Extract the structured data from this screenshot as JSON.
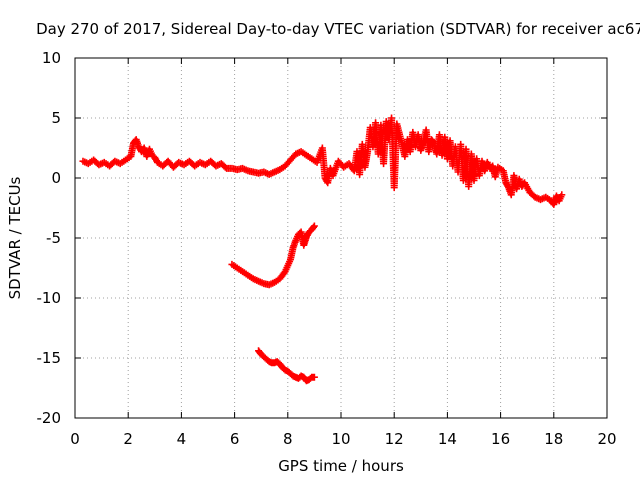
{
  "chart_data": {
    "type": "scatter",
    "title": "Day 270 of 2017, Sidereal Day-to-day VTEC variation (SDTVAR) for receiver ac67",
    "xlabel": "GPS time / hours",
    "ylabel": "SDTVAR / TECUs",
    "xlim": [
      0,
      20
    ],
    "ylim": [
      -20,
      10
    ],
    "xticks": [
      "0",
      "2",
      "4",
      "6",
      "8",
      "10",
      "12",
      "14",
      "16",
      "18",
      "20"
    ],
    "yticks": [
      "10",
      "5",
      "0",
      "-5",
      "-10",
      "-15",
      "-20"
    ],
    "grid": true,
    "marker": "+",
    "color": "#ff0000",
    "series": [
      {
        "name": "main-trace",
        "points": [
          [
            0.3,
            1.4
          ],
          [
            0.5,
            1.2
          ],
          [
            0.7,
            1.5
          ],
          [
            0.9,
            1.1
          ],
          [
            1.1,
            1.3
          ],
          [
            1.3,
            1.0
          ],
          [
            1.5,
            1.4
          ],
          [
            1.7,
            1.2
          ],
          [
            1.9,
            1.5
          ],
          [
            2.1,
            1.8
          ],
          [
            2.2,
            2.9
          ],
          [
            2.3,
            3.2
          ],
          [
            2.4,
            2.6
          ],
          [
            2.5,
            2.2
          ],
          [
            2.6,
            2.5
          ],
          [
            2.7,
            1.8
          ],
          [
            2.8,
            2.4
          ],
          [
            2.9,
            1.9
          ],
          [
            3.0,
            1.7
          ],
          [
            3.1,
            1.3
          ],
          [
            3.3,
            1.0
          ],
          [
            3.5,
            1.4
          ],
          [
            3.7,
            0.9
          ],
          [
            3.9,
            1.3
          ],
          [
            4.1,
            1.1
          ],
          [
            4.3,
            1.4
          ],
          [
            4.5,
            1.0
          ],
          [
            4.7,
            1.3
          ],
          [
            4.9,
            1.1
          ],
          [
            5.1,
            1.4
          ],
          [
            5.3,
            1.0
          ],
          [
            5.5,
            1.2
          ],
          [
            5.7,
            0.8
          ],
          [
            5.9,
            0.8
          ],
          [
            6.1,
            0.7
          ],
          [
            6.3,
            0.8
          ],
          [
            6.5,
            0.6
          ],
          [
            6.7,
            0.5
          ],
          [
            6.9,
            0.4
          ],
          [
            7.1,
            0.5
          ],
          [
            7.3,
            0.3
          ],
          [
            7.5,
            0.5
          ],
          [
            7.7,
            0.7
          ],
          [
            7.9,
            1.0
          ],
          [
            8.1,
            1.5
          ],
          [
            8.3,
            2.0
          ],
          [
            8.5,
            2.2
          ],
          [
            8.7,
            1.9
          ],
          [
            8.9,
            1.6
          ],
          [
            9.1,
            1.3
          ],
          [
            9.3,
            2.5
          ],
          [
            9.4,
            0.0
          ],
          [
            9.5,
            -0.4
          ],
          [
            9.6,
            0.8
          ],
          [
            9.7,
            0.2
          ],
          [
            9.9,
            1.4
          ],
          [
            10.1,
            0.9
          ],
          [
            10.3,
            1.2
          ],
          [
            10.5,
            0.6
          ],
          [
            10.6,
            2.2
          ],
          [
            10.7,
            0.3
          ],
          [
            10.8,
            2.8
          ],
          [
            10.9,
            0.9
          ],
          [
            11.0,
            2.2
          ],
          [
            11.1,
            4.2
          ],
          [
            11.2,
            2.6
          ],
          [
            11.3,
            4.6
          ],
          [
            11.4,
            2.0
          ],
          [
            11.5,
            4.4
          ],
          [
            11.6,
            1.2
          ],
          [
            11.7,
            4.7
          ],
          [
            11.8,
            3.2
          ],
          [
            11.9,
            5.0
          ],
          [
            12.0,
            -0.8
          ],
          [
            12.1,
            4.5
          ],
          [
            12.3,
            2.8
          ],
          [
            12.4,
            1.8
          ],
          [
            12.5,
            3.2
          ],
          [
            12.6,
            2.2
          ],
          [
            12.7,
            3.8
          ],
          [
            12.8,
            2.6
          ],
          [
            12.9,
            3.6
          ],
          [
            13.0,
            2.3
          ],
          [
            13.1,
            3.0
          ],
          [
            13.2,
            4.0
          ],
          [
            13.3,
            2.2
          ],
          [
            13.4,
            3.2
          ],
          [
            13.5,
            2.9
          ],
          [
            13.6,
            2.0
          ],
          [
            13.7,
            3.6
          ],
          [
            13.8,
            1.9
          ],
          [
            13.9,
            3.4
          ],
          [
            14.0,
            1.6
          ],
          [
            14.1,
            3.1
          ],
          [
            14.2,
            1.0
          ],
          [
            14.3,
            2.6
          ],
          [
            14.4,
            0.5
          ],
          [
            14.5,
            2.8
          ],
          [
            14.6,
            -0.2
          ],
          [
            14.7,
            2.4
          ],
          [
            14.8,
            -0.7
          ],
          [
            14.9,
            2.0
          ],
          [
            15.0,
            -0.2
          ],
          [
            15.1,
            1.6
          ],
          [
            15.2,
            0.2
          ],
          [
            15.3,
            1.4
          ],
          [
            15.4,
            0.6
          ],
          [
            15.5,
            1.3
          ],
          [
            15.6,
            0.8
          ],
          [
            15.7,
            1.0
          ],
          [
            15.8,
            0.1
          ],
          [
            15.9,
            0.9
          ],
          [
            16.1,
            0.6
          ],
          [
            16.2,
            -0.4
          ],
          [
            16.3,
            -0.8
          ],
          [
            16.4,
            -1.4
          ],
          [
            16.5,
            0.2
          ],
          [
            16.6,
            -0.9
          ],
          [
            16.7,
            -0.1
          ],
          [
            16.8,
            -0.7
          ],
          [
            16.9,
            -0.4
          ],
          [
            17.1,
            -1.2
          ],
          [
            17.3,
            -1.6
          ],
          [
            17.5,
            -1.8
          ],
          [
            17.7,
            -1.6
          ],
          [
            17.9,
            -1.9
          ],
          [
            18.0,
            -2.2
          ],
          [
            18.1,
            -1.5
          ],
          [
            18.2,
            -1.9
          ],
          [
            18.3,
            -1.4
          ]
        ]
      },
      {
        "name": "lower-arc",
        "points": [
          [
            5.9,
            -7.2
          ],
          [
            6.1,
            -7.5
          ],
          [
            6.3,
            -7.8
          ],
          [
            6.5,
            -8.1
          ],
          [
            6.7,
            -8.4
          ],
          [
            6.9,
            -8.6
          ],
          [
            7.1,
            -8.8
          ],
          [
            7.3,
            -8.9
          ],
          [
            7.5,
            -8.7
          ],
          [
            7.7,
            -8.4
          ],
          [
            7.9,
            -7.8
          ],
          [
            8.1,
            -6.8
          ],
          [
            8.2,
            -5.8
          ],
          [
            8.3,
            -5.2
          ],
          [
            8.4,
            -4.7
          ],
          [
            8.5,
            -4.5
          ],
          [
            8.6,
            -5.6
          ],
          [
            8.7,
            -4.9
          ],
          [
            8.8,
            -4.5
          ],
          [
            8.9,
            -4.3
          ],
          [
            9.0,
            -4.0
          ]
        ]
      },
      {
        "name": "bottom-arc",
        "points": [
          [
            6.9,
            -14.4
          ],
          [
            7.0,
            -14.7
          ],
          [
            7.1,
            -14.9
          ],
          [
            7.2,
            -15.1
          ],
          [
            7.3,
            -15.3
          ],
          [
            7.4,
            -15.4
          ],
          [
            7.5,
            -15.4
          ],
          [
            7.6,
            -15.3
          ],
          [
            7.7,
            -15.5
          ],
          [
            7.8,
            -15.8
          ],
          [
            7.9,
            -16.0
          ],
          [
            8.0,
            -16.1
          ],
          [
            8.1,
            -16.3
          ],
          [
            8.2,
            -16.5
          ],
          [
            8.3,
            -16.6
          ],
          [
            8.4,
            -16.7
          ],
          [
            8.5,
            -16.5
          ],
          [
            8.6,
            -16.6
          ],
          [
            8.7,
            -16.9
          ],
          [
            8.8,
            -16.8
          ],
          [
            8.9,
            -16.6
          ],
          [
            9.0,
            -16.6
          ]
        ]
      }
    ]
  }
}
